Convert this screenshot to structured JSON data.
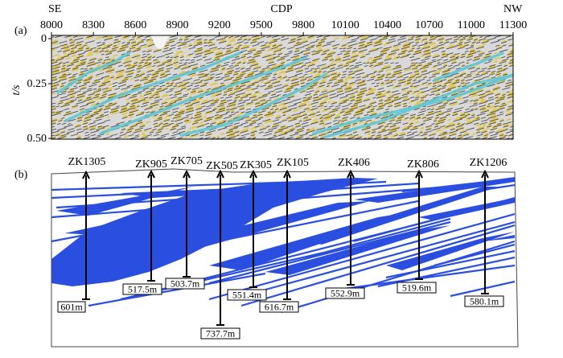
{
  "panel_a": {
    "label": "(a)",
    "left_label": "SE",
    "right_label": "NW",
    "top_axis_title": "CDP",
    "cdp_ticks": [
      "8000",
      "8300",
      "8600",
      "8900",
      "9200",
      "9500",
      "9800",
      "10100",
      "10400",
      "10700",
      "11000",
      "11300"
    ],
    "y_axis_title": "t/s",
    "y_ticks": [
      "0",
      "0.25",
      "0.50"
    ],
    "colors": {
      "wiggle": "#1a1a1a",
      "fill": "#e2c23a",
      "background": "#d9d9d9",
      "horizon": "#5ec8d8"
    }
  },
  "panel_b": {
    "label": "(b)",
    "colors": {
      "coal_seam": "#2a4fe0",
      "outline": "#444444"
    },
    "wells": [
      {
        "name": "ZK1305",
        "depth": "601m"
      },
      {
        "name": "ZK905",
        "depth": "517.5m"
      },
      {
        "name": "ZK705",
        "depth": "503.7m"
      },
      {
        "name": "ZK505",
        "depth": "737.7m"
      },
      {
        "name": "ZK305",
        "depth": "551.4m"
      },
      {
        "name": "ZK105",
        "depth": "616.7m"
      },
      {
        "name": "ZK406",
        "depth": "552.9m"
      },
      {
        "name": "ZK806",
        "depth": "519.6m"
      },
      {
        "name": "ZK1206",
        "depth": "580.1m"
      }
    ]
  }
}
